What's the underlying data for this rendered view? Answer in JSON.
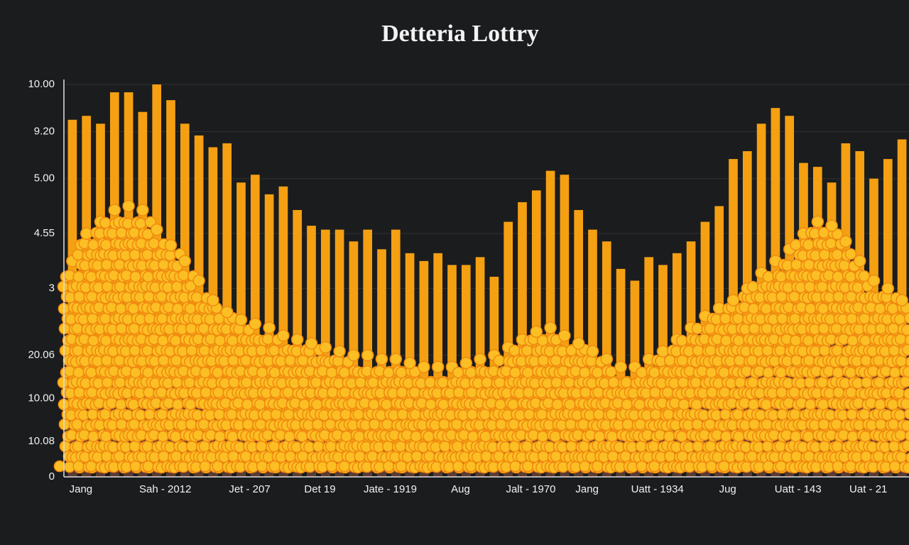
{
  "chart_data": {
    "type": "bar",
    "title": "Detteria Lottry",
    "categories": [
      "Jang",
      null,
      null,
      null,
      null,
      null,
      "Sah - 2012",
      null,
      null,
      null,
      null,
      null,
      "Jet - 207",
      null,
      null,
      null,
      null,
      "Det 19",
      null,
      null,
      null,
      null,
      "Jate - 1919",
      null,
      null,
      null,
      null,
      "Aug",
      null,
      null,
      null,
      null,
      "Jalt - 1970",
      null,
      null,
      null,
      "Jang",
      null,
      null,
      null,
      null,
      "Uatt - 1934",
      null,
      null,
      null,
      null,
      "Jug",
      null,
      null,
      null,
      null,
      "Uatt - 143",
      null,
      null,
      null,
      null,
      "Uat - 21",
      null,
      null,
      null
    ],
    "series": [
      {
        "color": "#f4a012",
        "values": [
          9.1,
          9.2,
          9.0,
          9.8,
          9.8,
          9.3,
          10.0,
          9.6,
          9.0,
          8.7,
          8.4,
          8.5,
          7.5,
          7.7,
          7.2,
          7.4,
          6.8,
          6.4,
          6.3,
          6.3,
          6.0,
          6.3,
          5.8,
          6.3,
          5.7,
          5.5,
          5.7,
          5.4,
          5.4,
          5.6,
          5.1,
          6.5,
          7.0,
          7.3,
          7.8,
          7.7,
          6.8,
          6.3,
          6.0,
          5.3,
          5.0,
          5.6,
          5.4,
          5.7,
          6.0,
          6.5,
          6.9,
          8.1,
          8.3,
          9.0,
          9.4,
          9.2,
          8.0,
          7.9,
          7.5,
          8.5,
          8.3,
          7.6,
          8.1,
          8.6
        ]
      },
      {
        "color": "#fbbf24",
        "values": [
          5.5,
          6.2,
          6.5,
          6.8,
          6.9,
          6.8,
          6.3,
          5.9,
          5.5,
          5.0,
          4.5,
          4.2,
          4.0,
          3.9,
          3.8,
          3.6,
          3.5,
          3.4,
          3.3,
          3.2,
          3.1,
          3.1,
          3.0,
          3.0,
          2.9,
          2.8,
          2.8,
          2.8,
          2.9,
          3.0,
          3.1,
          3.3,
          3.5,
          3.7,
          3.8,
          3.6,
          3.4,
          3.2,
          3.0,
          2.8,
          2.8,
          3.0,
          3.2,
          3.5,
          3.8,
          4.1,
          4.3,
          4.5,
          4.8,
          5.2,
          5.5,
          5.8,
          6.2,
          6.5,
          6.4,
          6.0,
          5.5,
          5.0,
          4.8,
          4.5
        ]
      },
      {
        "color": "#5a3a34",
        "values": [
          1.5,
          2.2,
          1.9,
          2.5,
          2.4,
          2.3,
          2.4,
          2.4,
          2.1,
          1.9,
          1.6,
          1.4,
          1.3,
          1.3,
          1.2,
          1.1,
          1.0,
          1.0,
          0.9,
          0.9,
          0.8,
          0.8,
          0.7,
          0.7,
          0.7,
          0.7,
          0.7,
          0.7,
          0.8,
          0.8,
          0.9,
          0.9,
          1.0,
          1.0,
          1.1,
          1.1,
          1.1,
          1.1,
          1.1,
          1.1,
          1.1,
          1.2,
          1.3,
          1.5,
          1.8,
          2.0,
          2.2,
          2.4,
          2.6,
          2.8,
          3.0,
          3.0,
          3.2,
          3.3,
          3.4,
          3.4,
          3.3,
          3.2,
          3.0,
          2.8
        ]
      }
    ],
    "ylim": [
      0,
      10
    ],
    "yticks": [
      {
        "value": 10,
        "label": "10.00"
      },
      {
        "value": 8.8,
        "label": "9.20"
      },
      {
        "value": 7.6,
        "label": "5.00"
      },
      {
        "value": 6.2,
        "label": "4.55"
      },
      {
        "value": 4.8,
        "label": "3"
      },
      {
        "value": 3.1,
        "label": "20.06"
      },
      {
        "value": 2.0,
        "label": "10.00"
      },
      {
        "value": 0.9,
        "label": "10.08"
      },
      0
    ],
    "grid": true
  }
}
